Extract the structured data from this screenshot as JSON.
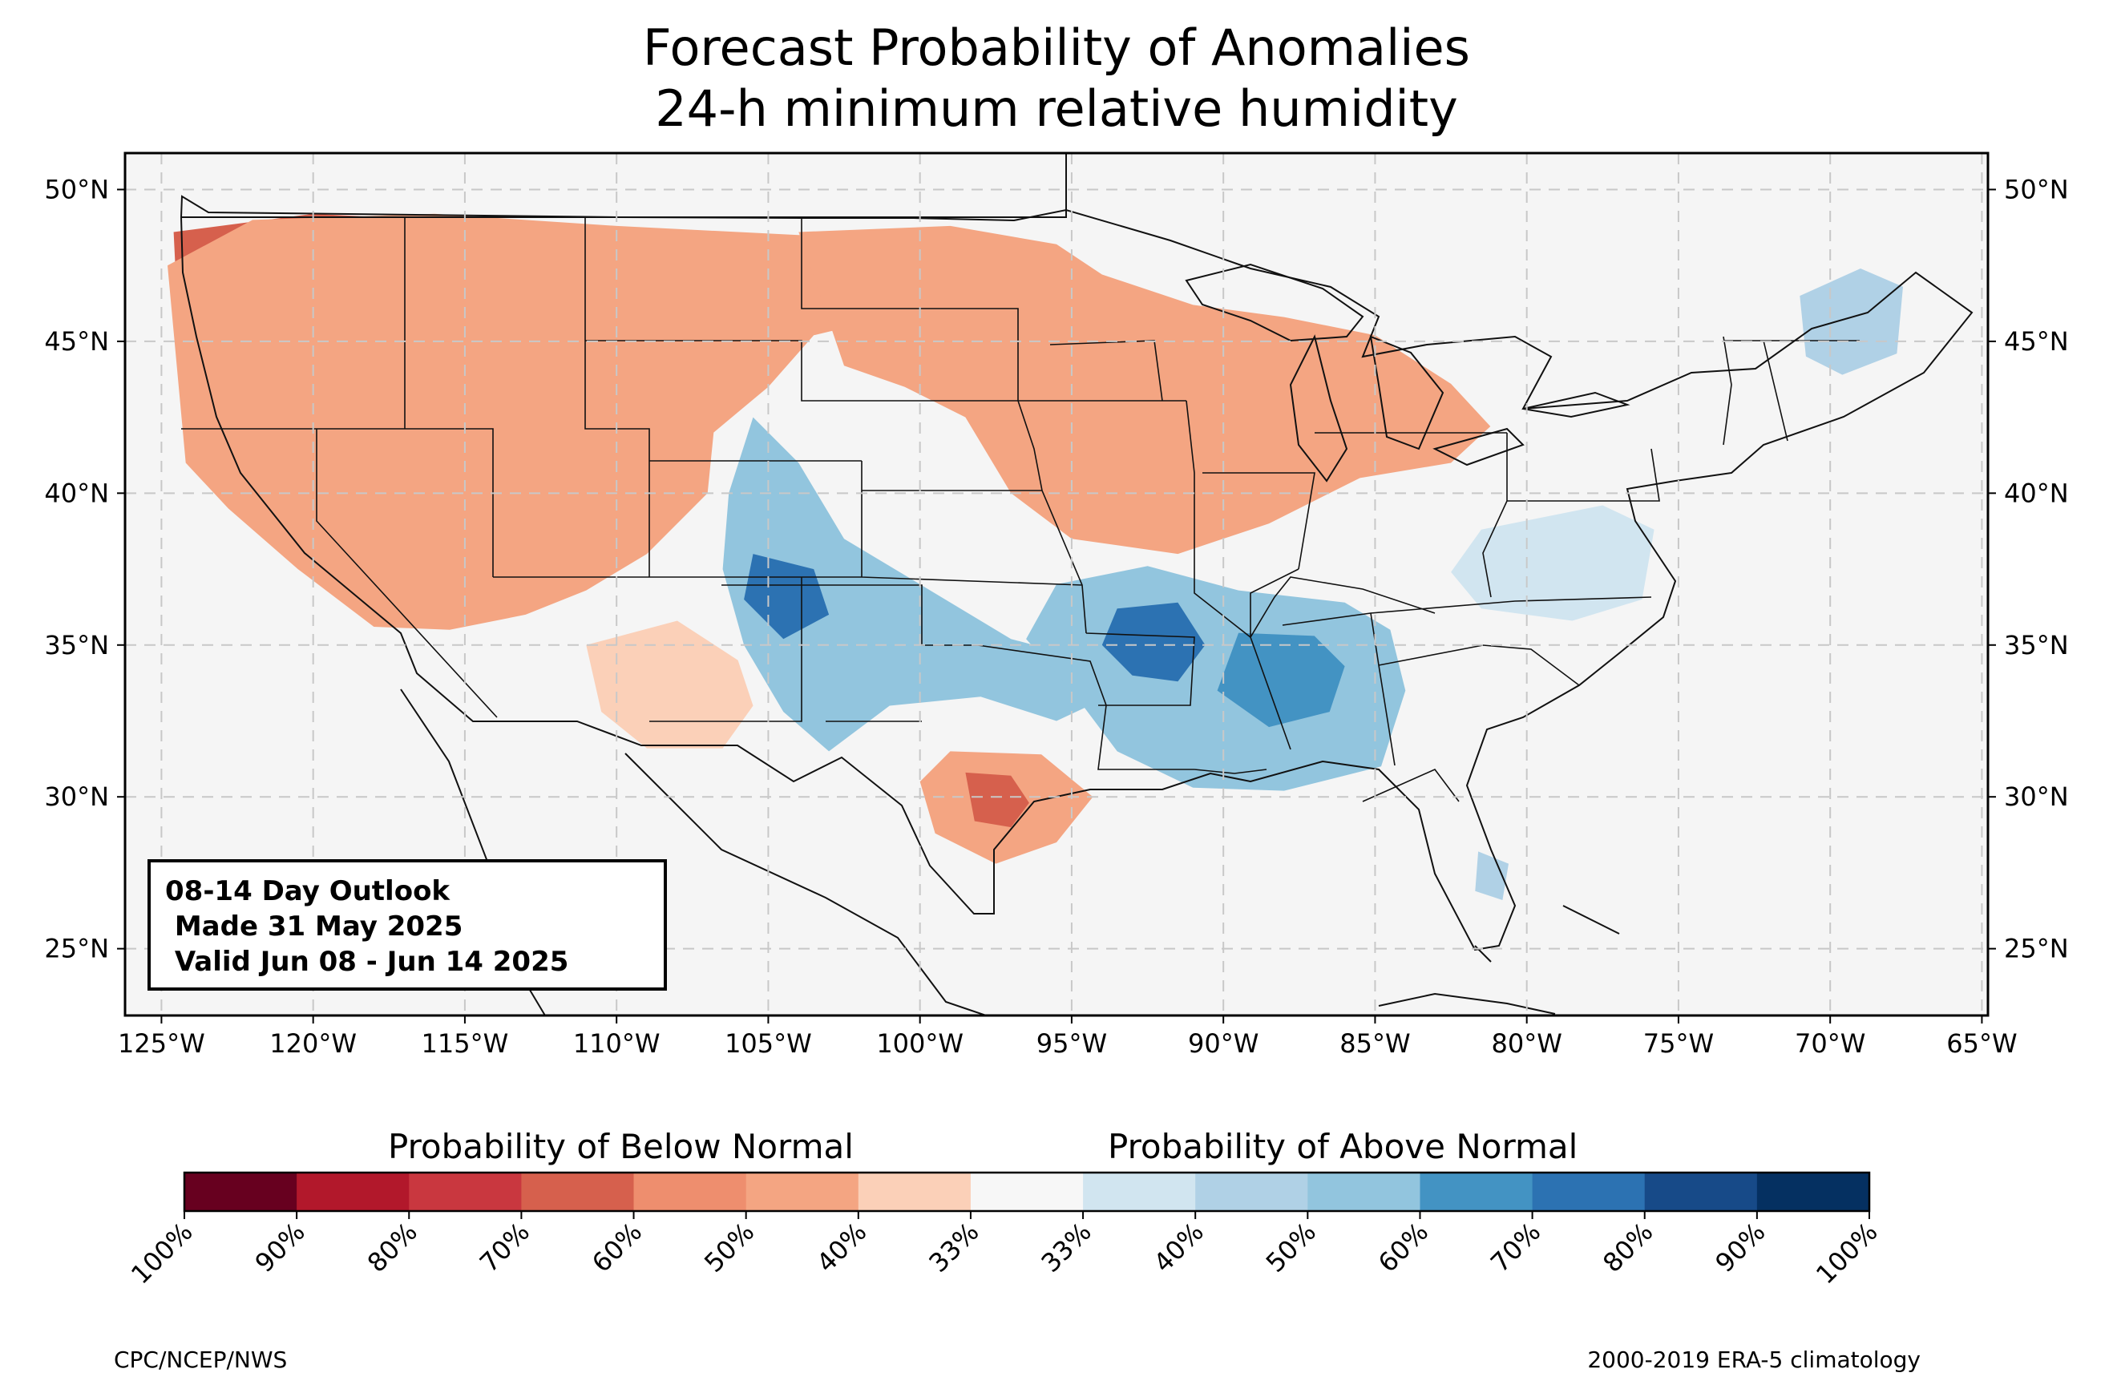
{
  "title": {
    "line1": "Forecast Probability of Anomalies",
    "line2": "24-h minimum relative humidity"
  },
  "outlook": {
    "line1": "08-14 Day Outlook",
    "line2": " Made 31 May 2025",
    "line3": " Valid Jun 08 - Jun 14 2025"
  },
  "axes": {
    "lon_labels": [
      "125°W",
      "120°W",
      "115°W",
      "110°W",
      "105°W",
      "100°W",
      "95°W",
      "90°W",
      "85°W",
      "80°W",
      "75°W",
      "70°W",
      "65°W"
    ],
    "lon_values": [
      -125,
      -120,
      -115,
      -110,
      -105,
      -100,
      -95,
      -90,
      -85,
      -80,
      -75,
      -70,
      -65
    ],
    "lat_labels": [
      "50°N",
      "45°N",
      "40°N",
      "35°N",
      "30°N",
      "25°N"
    ],
    "lat_values": [
      50,
      45,
      40,
      35,
      30,
      25
    ],
    "lon_range": [
      -126.2,
      -64.8
    ],
    "lat_range": [
      22.8,
      51.2
    ],
    "grid": "dashed"
  },
  "colorbar": {
    "below_label": "Probability of Below Normal",
    "above_label": "Probability of Above Normal",
    "tick_labels": [
      "100%",
      "90%",
      "80%",
      "70%",
      "60%",
      "50%",
      "40%",
      "33%",
      "33%",
      "40%",
      "50%",
      "60%",
      "70%",
      "80%",
      "90%",
      "100%"
    ],
    "colors": [
      "#67001f",
      "#b2182b",
      "#c9373f",
      "#d6604d",
      "#ee8e6e",
      "#f4a582",
      "#fbd0b8",
      "#f7f7f7",
      "#d1e5f0",
      "#b0d1e6",
      "#92c5de",
      "#4393c3",
      "#2c72b2",
      "#174a88",
      "#053061"
    ]
  },
  "regions": [
    {
      "name": "northwest-below-90",
      "color": "#67001f",
      "poly": [
        [
          -122.5,
          48.5
        ],
        [
          -119,
          48.8
        ],
        [
          -116,
          47.6
        ],
        [
          -114.5,
          46
        ],
        [
          -116,
          45
        ],
        [
          -118.5,
          44.8
        ],
        [
          -121.5,
          45.6
        ],
        [
          -122.8,
          47
        ]
      ]
    },
    {
      "name": "northwest-below-80",
      "color": "#b2182b",
      "poly": [
        [
          -124,
          48
        ],
        [
          -120,
          49
        ],
        [
          -115.5,
          48.6
        ],
        [
          -112,
          46.5
        ],
        [
          -111,
          45
        ],
        [
          -109,
          44.5
        ],
        [
          -109.5,
          42.5
        ],
        [
          -111.5,
          40.8
        ],
        [
          -114,
          41
        ],
        [
          -117,
          42
        ],
        [
          -120,
          43
        ],
        [
          -123.5,
          44
        ]
      ]
    },
    {
      "name": "west-below-70",
      "color": "#d6604d",
      "poly": [
        [
          -124.6,
          48.6
        ],
        [
          -120,
          49.2
        ],
        [
          -116,
          49
        ],
        [
          -112.5,
          47.6
        ],
        [
          -110,
          47
        ],
        [
          -107.5,
          45.5
        ],
        [
          -107,
          43
        ],
        [
          -108.5,
          41
        ],
        [
          -111,
          39.5
        ],
        [
          -113,
          38.2
        ],
        [
          -115.5,
          38.5
        ],
        [
          -118,
          40
        ],
        [
          -121.5,
          41.5
        ],
        [
          -124.3,
          42.5
        ]
      ]
    },
    {
      "name": "west-below-50",
      "color": "#f4a582",
      "poly": [
        [
          -124.8,
          47.5
        ],
        [
          -122,
          49
        ],
        [
          -116,
          49.2
        ],
        [
          -110,
          48.8
        ],
        [
          -104,
          48.5
        ],
        [
          -100,
          48.6
        ],
        [
          -99,
          47
        ],
        [
          -101,
          45.8
        ],
        [
          -103.5,
          45.2
        ],
        [
          -105,
          43.5
        ],
        [
          -106.8,
          42
        ],
        [
          -107,
          40
        ],
        [
          -109,
          38
        ],
        [
          -111,
          36.8
        ],
        [
          -113,
          36
        ],
        [
          -115.5,
          35.5
        ],
        [
          -118,
          35.6
        ],
        [
          -120.5,
          37.5
        ],
        [
          -122.8,
          39.5
        ],
        [
          -124.2,
          41
        ]
      ]
    },
    {
      "name": "southwest-below-40",
      "color": "#fbd0b8",
      "poly": [
        [
          -111,
          35
        ],
        [
          -108,
          35.8
        ],
        [
          -106,
          34.5
        ],
        [
          -105.5,
          33
        ],
        [
          -106.5,
          31.6
        ],
        [
          -109,
          31.6
        ],
        [
          -110.5,
          32.8
        ]
      ]
    },
    {
      "name": "midwest-below-60",
      "color": "#d6604d",
      "poly": [
        [
          -96.5,
          44.8
        ],
        [
          -93,
          45.5
        ],
        [
          -89.5,
          45
        ],
        [
          -86.5,
          44
        ],
        [
          -85,
          42.6
        ],
        [
          -86,
          41.3
        ],
        [
          -88.5,
          40.5
        ],
        [
          -91,
          39.2
        ],
        [
          -94,
          39.3
        ],
        [
          -96,
          40.5
        ],
        [
          -97,
          42.8
        ]
      ]
    },
    {
      "name": "north-central-below-50",
      "color": "#f4a582",
      "poly": [
        [
          -104,
          48.6
        ],
        [
          -99,
          48.8
        ],
        [
          -95.5,
          48.2
        ],
        [
          -94,
          47.2
        ],
        [
          -91,
          46.2
        ],
        [
          -88,
          45.8
        ],
        [
          -85,
          45.2
        ],
        [
          -82.5,
          43.6
        ],
        [
          -81.2,
          42.2
        ],
        [
          -82.5,
          41
        ],
        [
          -85.5,
          40.5
        ],
        [
          -88.5,
          39
        ],
        [
          -91.5,
          38
        ],
        [
          -95,
          38.5
        ],
        [
          -97,
          40
        ],
        [
          -98.5,
          42.5
        ],
        [
          -100.5,
          43.5
        ],
        [
          -102.5,
          44.2
        ]
      ]
    },
    {
      "name": "central-texas-below-50",
      "color": "#f4a582",
      "poly": [
        [
          -99,
          31.5
        ],
        [
          -96,
          31.4
        ],
        [
          -94.3,
          30
        ],
        [
          -95.5,
          28.5
        ],
        [
          -97.5,
          27.8
        ],
        [
          -99.5,
          28.8
        ],
        [
          -100,
          30.5
        ]
      ]
    },
    {
      "name": "central-texas-below-70",
      "color": "#d6604d",
      "poly": [
        [
          -98.5,
          30.8
        ],
        [
          -97,
          30.7
        ],
        [
          -96.4,
          29.8
        ],
        [
          -97,
          29
        ],
        [
          -98.2,
          29.2
        ]
      ]
    },
    {
      "name": "colorado-above-50",
      "color": "#92c5de",
      "poly": [
        [
          -105.5,
          42.5
        ],
        [
          -104,
          41
        ],
        [
          -102.5,
          38.5
        ],
        [
          -100,
          37
        ],
        [
          -97,
          35.2
        ],
        [
          -95.5,
          34.8
        ],
        [
          -94,
          33.2
        ],
        [
          -95.5,
          32.5
        ],
        [
          -98,
          33.3
        ],
        [
          -101,
          33
        ],
        [
          -103,
          31.5
        ],
        [
          -104.5,
          32.8
        ],
        [
          -105.8,
          35
        ],
        [
          -106.5,
          37.5
        ],
        [
          -106.3,
          40
        ]
      ]
    },
    {
      "name": "colorado-above-70",
      "color": "#2c72b2",
      "poly": [
        [
          -105.5,
          38
        ],
        [
          -103.5,
          37.5
        ],
        [
          -103,
          36
        ],
        [
          -104.5,
          35.2
        ],
        [
          -105.8,
          36.5
        ]
      ]
    },
    {
      "name": "lower-mississippi-above-50",
      "color": "#92c5de",
      "poly": [
        [
          -95.5,
          37
        ],
        [
          -92.5,
          37.6
        ],
        [
          -89.5,
          36.8
        ],
        [
          -86,
          36.4
        ],
        [
          -84.5,
          35.5
        ],
        [
          -84,
          33.5
        ],
        [
          -84.8,
          31
        ],
        [
          -88,
          30.2
        ],
        [
          -91,
          30.3
        ],
        [
          -93.5,
          31.5
        ],
        [
          -95,
          33.5
        ],
        [
          -96.5,
          35.2
        ]
      ]
    },
    {
      "name": "lower-mississippi-above-70",
      "color": "#2c72b2",
      "poly": [
        [
          -93.5,
          36.2
        ],
        [
          -91.5,
          36.4
        ],
        [
          -90.6,
          35
        ],
        [
          -91.5,
          33.8
        ],
        [
          -93,
          34
        ],
        [
          -94,
          35
        ]
      ]
    },
    {
      "name": "deep-south-above-70",
      "color": "#4393c3",
      "poly": [
        [
          -89.5,
          35.4
        ],
        [
          -87,
          35.3
        ],
        [
          -86,
          34.3
        ],
        [
          -86.5,
          32.8
        ],
        [
          -88.5,
          32.3
        ],
        [
          -90.2,
          33.5
        ]
      ]
    },
    {
      "name": "mid-atlantic-above-40",
      "color": "#d1e5f0",
      "poly": [
        [
          -81.5,
          38.8
        ],
        [
          -77.5,
          39.6
        ],
        [
          -75.8,
          38.8
        ],
        [
          -76.2,
          36.5
        ],
        [
          -78.5,
          35.8
        ],
        [
          -81.5,
          36.2
        ],
        [
          -82.5,
          37.4
        ]
      ]
    },
    {
      "name": "maine-above-40",
      "color": "#b0d1e6",
      "poly": [
        [
          -71,
          46.5
        ],
        [
          -69,
          47.4
        ],
        [
          -67.6,
          46.8
        ],
        [
          -67.8,
          44.6
        ],
        [
          -69.6,
          43.9
        ],
        [
          -70.8,
          44.5
        ]
      ]
    },
    {
      "name": "florida-above-40",
      "color": "#b0d1e6",
      "poly": [
        [
          -81.6,
          28.2
        ],
        [
          -80.6,
          27.8
        ],
        [
          -80.8,
          26.6
        ],
        [
          -81.7,
          26.9
        ]
      ]
    }
  ]
}
